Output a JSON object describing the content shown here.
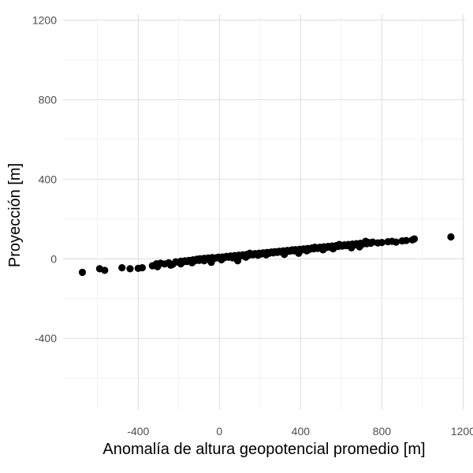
{
  "chart_data": {
    "type": "scatter",
    "xlabel": "Anomalía de altura geopotencial promedio [m]",
    "ylabel": "Proyección [m]",
    "xlim": [
      -770,
      1210
    ],
    "ylim": [
      -760,
      1230
    ],
    "x_ticks": [
      -400,
      0,
      400,
      800,
      1200
    ],
    "x_tick_labels": [
      "-400",
      "0",
      "400",
      "800",
      "1200"
    ],
    "x_minor_ticks": [
      -600,
      -200,
      200,
      600,
      1000
    ],
    "y_ticks": [
      -400,
      0,
      400,
      800,
      1200
    ],
    "y_tick_labels": [
      "-400",
      "0",
      "400",
      "800",
      "1200"
    ],
    "y_minor_ticks": [
      -600,
      -200,
      200,
      600,
      1000
    ],
    "grid": true,
    "point_color": "#000000",
    "series": [
      {
        "x": [
          -675,
          -590,
          -565,
          -480,
          -440,
          -400,
          -380,
          -330,
          -310,
          -300,
          -290,
          -270,
          -250,
          -230,
          -215,
          -200,
          -190,
          -180,
          -170,
          -160,
          -150,
          -140,
          -130,
          -120,
          -110,
          -100,
          -95,
          -85,
          -75,
          -65,
          -55,
          -45,
          -35,
          -25,
          -15,
          -5,
          5,
          15,
          25,
          35,
          45,
          55,
          65,
          75,
          85,
          95,
          105,
          115,
          125,
          135,
          145,
          155,
          165,
          175,
          185,
          195,
          205,
          215,
          225,
          235,
          245,
          255,
          265,
          275,
          285,
          295,
          305,
          315,
          325,
          335,
          345,
          355,
          365,
          375,
          385,
          395,
          405,
          415,
          425,
          435,
          445,
          455,
          465,
          475,
          485,
          495,
          505,
          515,
          525,
          535,
          545,
          555,
          565,
          575,
          585,
          595,
          605,
          615,
          625,
          635,
          645,
          655,
          665,
          675,
          685,
          695,
          705,
          715,
          725,
          735,
          745,
          755,
          780,
          800,
          830,
          850,
          870,
          900,
          920,
          950,
          960,
          1140,
          -305,
          -240,
          -190,
          -135,
          -75,
          -40,
          10,
          65,
          90,
          130,
          150,
          190,
          230,
          270,
          320,
          360,
          390,
          430,
          470,
          510,
          560,
          590,
          650,
          690,
          720
        ],
        "y": [
          -68,
          -50,
          -58,
          -45,
          -50,
          -48,
          -45,
          -35,
          -25,
          -30,
          -22,
          -26,
          -20,
          -28,
          -15,
          -18,
          -12,
          -16,
          -10,
          -14,
          -8,
          -12,
          -5,
          -10,
          -2,
          -8,
          0,
          -5,
          2,
          -3,
          4,
          0,
          6,
          2,
          5,
          8,
          4,
          9,
          6,
          12,
          8,
          14,
          10,
          16,
          12,
          18,
          14,
          20,
          16,
          22,
          18,
          24,
          20,
          26,
          22,
          28,
          24,
          30,
          26,
          32,
          28,
          34,
          30,
          36,
          32,
          38,
          34,
          40,
          36,
          42,
          38,
          44,
          40,
          46,
          42,
          48,
          44,
          50,
          46,
          52,
          48,
          54,
          50,
          56,
          52,
          58,
          54,
          60,
          56,
          62,
          58,
          64,
          60,
          66,
          62,
          68,
          64,
          70,
          66,
          72,
          68,
          74,
          70,
          76,
          72,
          78,
          74,
          80,
          76,
          82,
          78,
          84,
          80,
          82,
          86,
          88,
          84,
          90,
          92,
          95,
          100,
          110,
          -40,
          -32,
          -25,
          -20,
          -10,
          -18,
          -5,
          5,
          -10,
          8,
          28,
          18,
          20,
          35,
          22,
          45,
          28,
          40,
          58,
          45,
          50,
          72,
          55,
          60,
          88
        ]
      }
    ]
  }
}
